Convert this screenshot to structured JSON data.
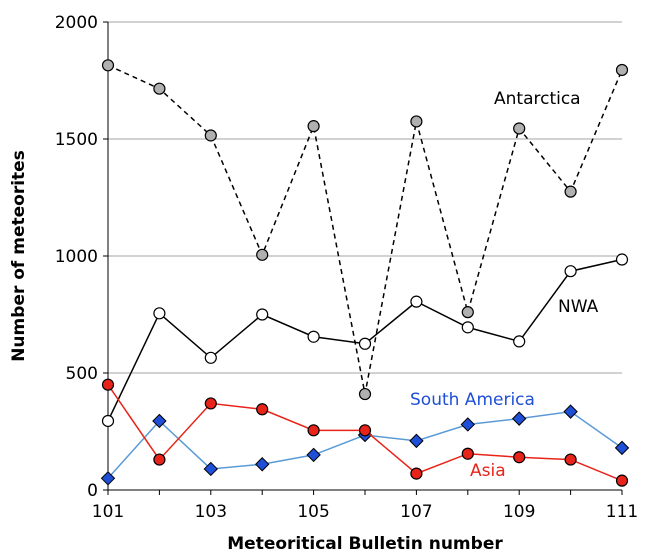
{
  "chart_data": {
    "type": "line",
    "xlabel": "Meteoritical Bulletin number",
    "ylabel": "Number of meteorites",
    "xlim": [
      101,
      111
    ],
    "ylim": [
      0,
      2000
    ],
    "x": [
      101,
      102,
      103,
      104,
      105,
      106,
      107,
      108,
      109,
      110,
      111
    ],
    "x_ticks": [
      101,
      103,
      105,
      107,
      109,
      111
    ],
    "y_ticks": [
      0,
      500,
      1000,
      1500,
      2000
    ],
    "grid": "horizontal",
    "series": [
      {
        "name": "Antarctica",
        "values": [
          1815,
          1715,
          1515,
          1005,
          1555,
          410,
          1575,
          760,
          1545,
          1275,
          1795
        ],
        "line": "dashed",
        "line_color": "#000000",
        "marker": "circle",
        "marker_fill": "#b0b0b0",
        "marker_stroke": "#000000"
      },
      {
        "name": "NWA",
        "values": [
          295,
          755,
          565,
          750,
          655,
          625,
          805,
          695,
          635,
          935,
          985
        ],
        "line": "solid",
        "line_color": "#000000",
        "marker": "circle",
        "marker_fill": "#ffffff",
        "marker_stroke": "#000000"
      },
      {
        "name": "South America",
        "values": [
          50,
          295,
          90,
          110,
          150,
          235,
          210,
          280,
          305,
          335,
          180
        ],
        "line": "solid",
        "line_color": "#5b9bd5",
        "marker": "diamond",
        "marker_fill": "#1f4fd6",
        "marker_stroke": "#000000",
        "label_color": "#1f4fd6"
      },
      {
        "name": "Asia",
        "values": [
          450,
          130,
          370,
          345,
          255,
          255,
          70,
          155,
          140,
          130,
          40
        ],
        "line": "solid",
        "line_color": "#e8231a",
        "marker": "circle",
        "marker_fill": "#e8231a",
        "marker_stroke": "#000000",
        "label_color": "#e8231a"
      }
    ]
  }
}
